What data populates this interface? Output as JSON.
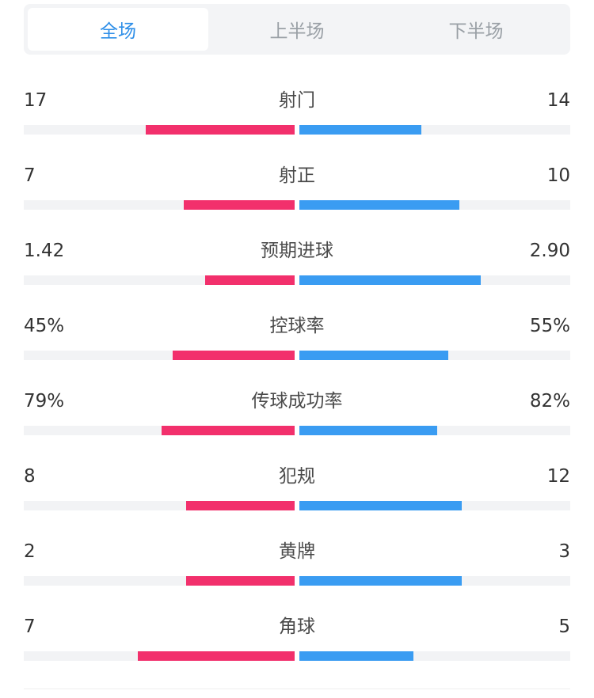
{
  "tabs": [
    {
      "label": "全场",
      "active": true
    },
    {
      "label": "上半场",
      "active": false
    },
    {
      "label": "下半场",
      "active": false
    }
  ],
  "colors": {
    "home": "#f2306c",
    "away": "#3a9cf2",
    "accent": "#2f8fe8"
  },
  "stats": [
    {
      "label": "射门",
      "home": "17",
      "away": "14",
      "home_fill": 0.55,
      "away_fill": 0.45
    },
    {
      "label": "射正",
      "home": "7",
      "away": "10",
      "home_fill": 0.41,
      "away_fill": 0.59
    },
    {
      "label": "预期进球",
      "home": "1.42",
      "away": "2.90",
      "home_fill": 0.33,
      "away_fill": 0.67
    },
    {
      "label": "控球率",
      "home": "45%",
      "away": "55%",
      "home_fill": 0.45,
      "away_fill": 0.55
    },
    {
      "label": "传球成功率",
      "home": "79%",
      "away": "82%",
      "home_fill": 0.49,
      "away_fill": 0.51
    },
    {
      "label": "犯规",
      "home": "8",
      "away": "12",
      "home_fill": 0.4,
      "away_fill": 0.6
    },
    {
      "label": "黄牌",
      "home": "2",
      "away": "3",
      "home_fill": 0.4,
      "away_fill": 0.6
    },
    {
      "label": "角球",
      "home": "7",
      "away": "5",
      "home_fill": 0.58,
      "away_fill": 0.42
    }
  ]
}
